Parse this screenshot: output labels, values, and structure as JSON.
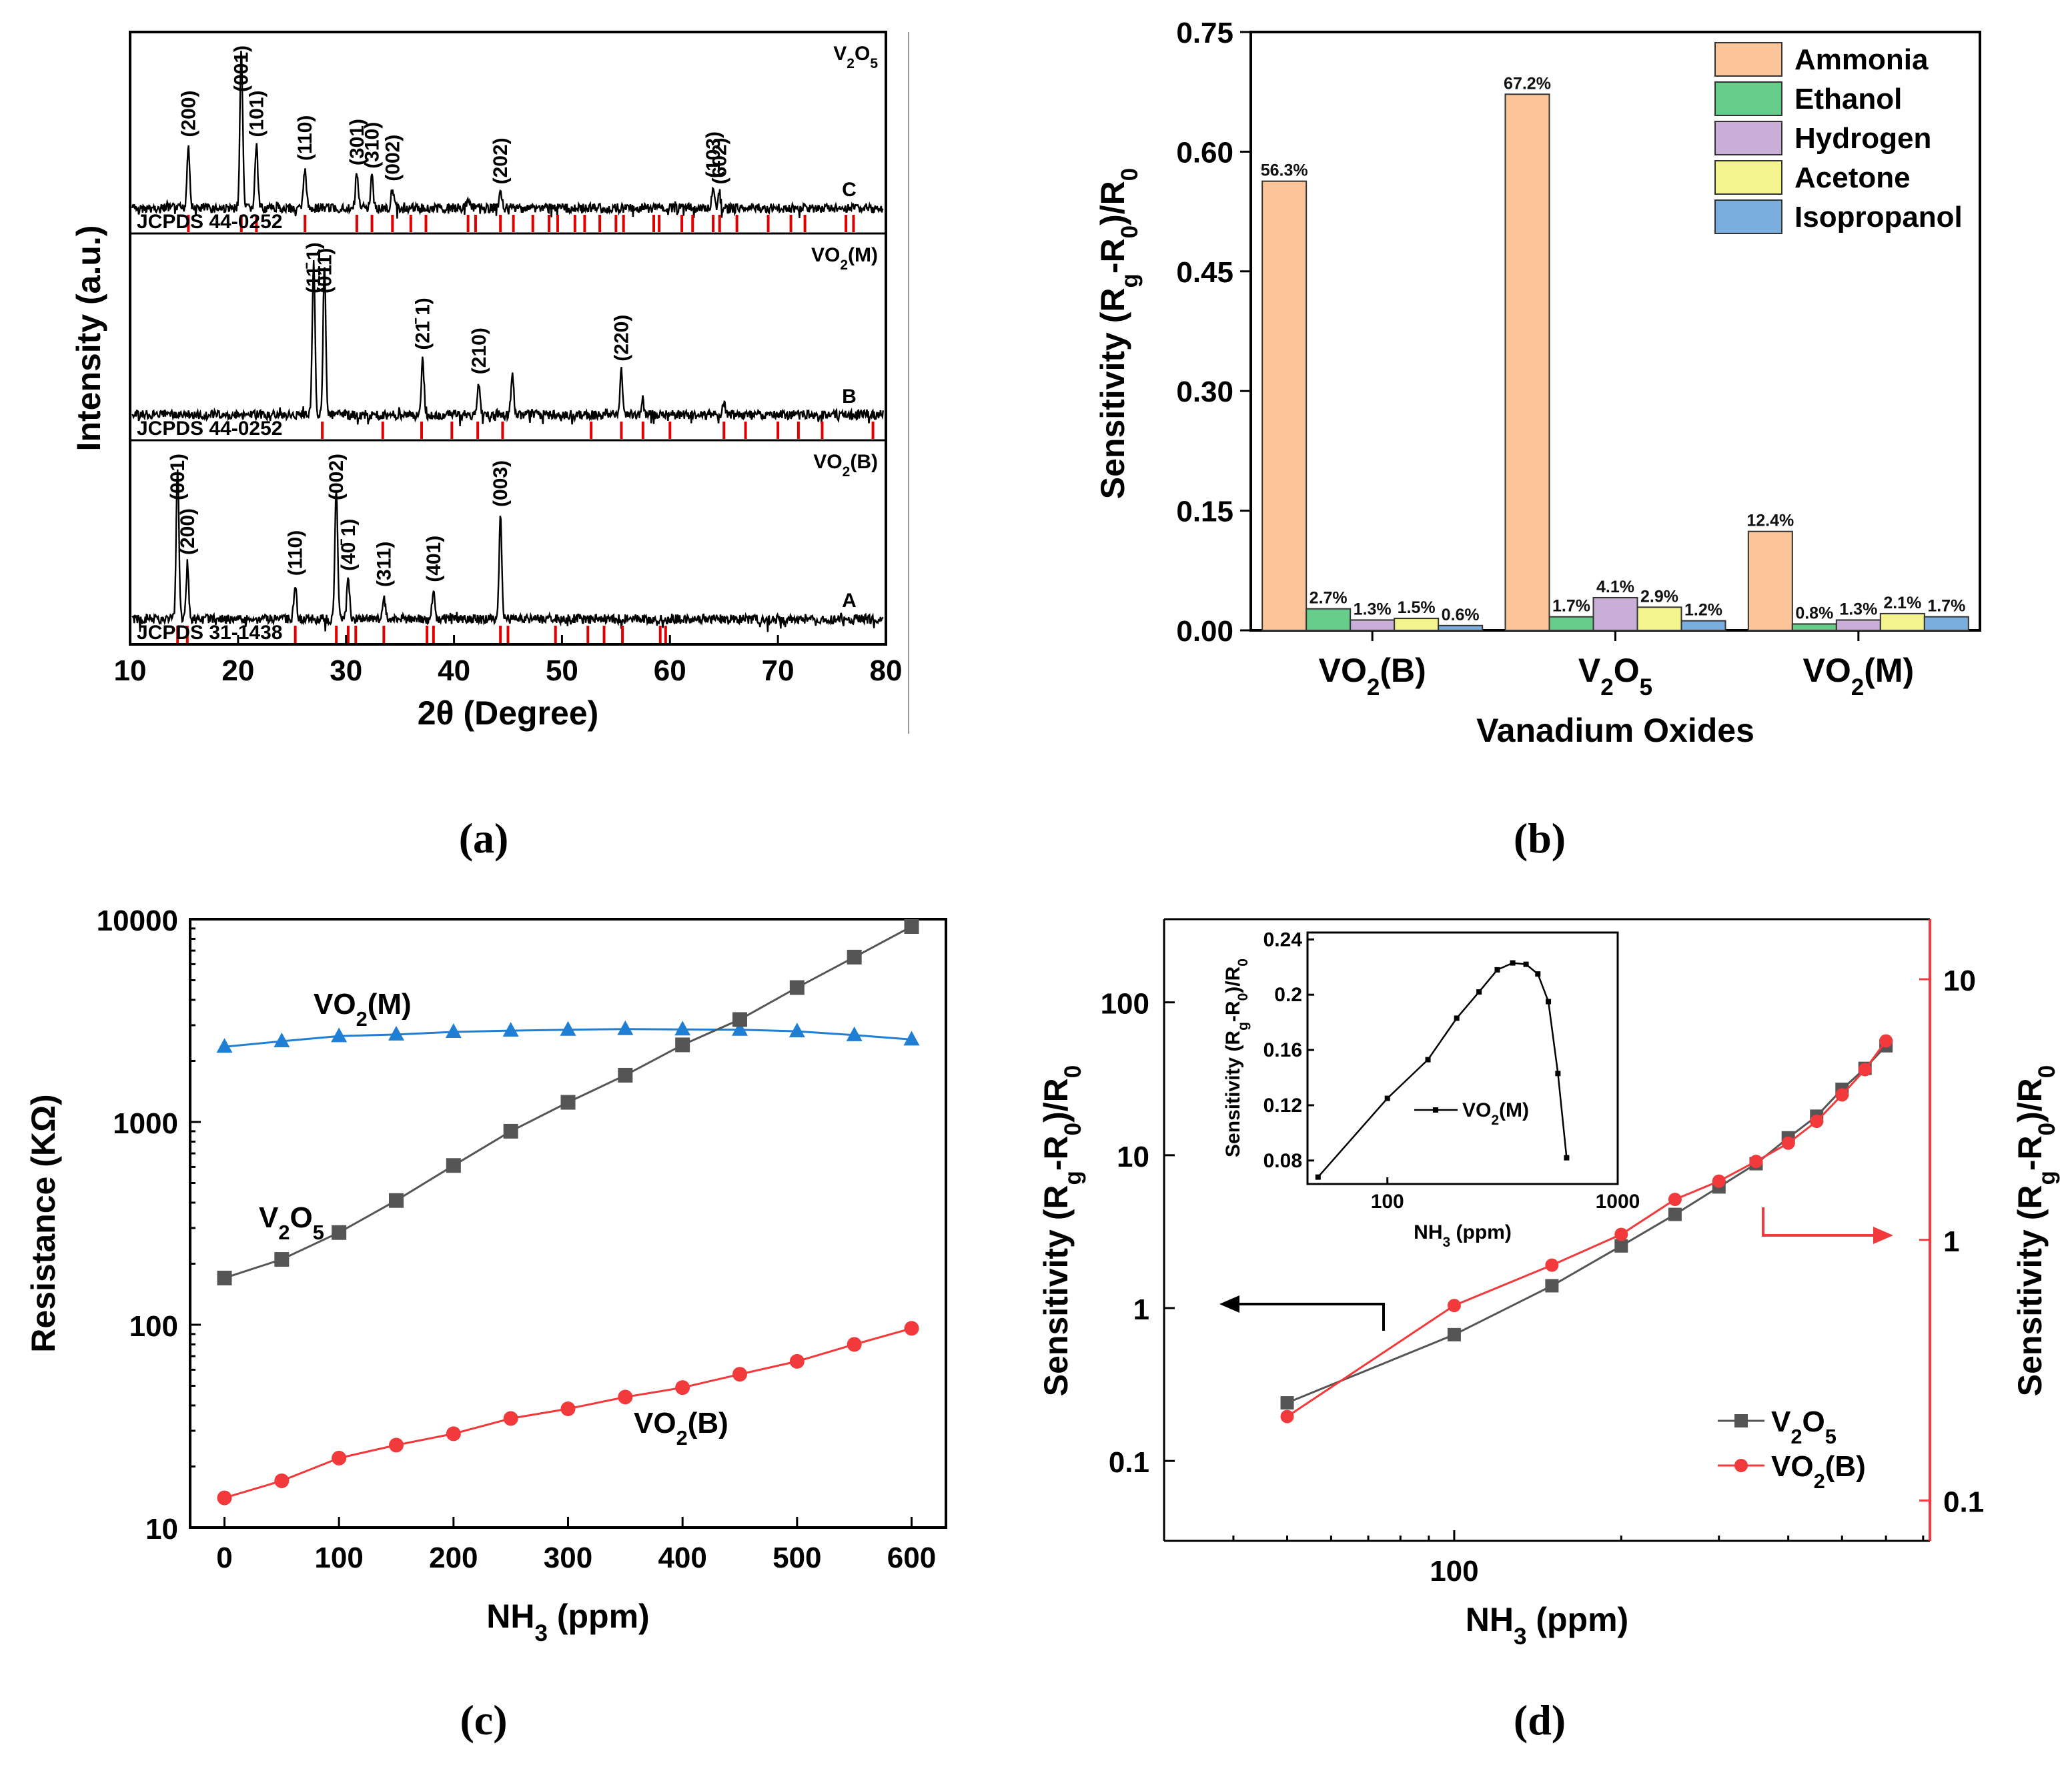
{
  "captions": [
    "(a)",
    "(b)",
    "(c)",
    "(d)"
  ],
  "chart_data": [
    {
      "id": "a",
      "type": "line",
      "xlabel": "2θ (Degree)",
      "ylabel": "Intensity (a.u.)",
      "xlim": [
        10,
        80
      ],
      "xticks": [
        10,
        20,
        30,
        40,
        50,
        60,
        70,
        80
      ],
      "panels": [
        {
          "phase": "V2O5",
          "phase_label": "V₂O₅",
          "curve_letter": "C",
          "reference": "JCPDS 44-0252",
          "peaks": [
            {
              "x": 15.4,
              "label": "(200)",
              "h": 0.4
            },
            {
              "x": 20.3,
              "label": "(001)",
              "h": 1.0
            },
            {
              "x": 21.7,
              "label": "(101)",
              "h": 0.4
            },
            {
              "x": 26.2,
              "label": "(110)",
              "h": 0.25
            },
            {
              "x": 31.0,
              "label": "(301)",
              "h": 0.22
            },
            {
              "x": 32.4,
              "label": "(310)",
              "h": 0.2
            },
            {
              "x": 34.3,
              "label": "(002)",
              "h": 0.12
            },
            {
              "x": 41.3,
              "label": "",
              "h": 0.07
            },
            {
              "x": 44.3,
              "label": "(202)",
              "h": 0.1
            },
            {
              "x": 64.0,
              "label": "(103)",
              "h": 0.14
            },
            {
              "x": 64.6,
              "label": "(602)",
              "h": 0.1
            }
          ],
          "ref_lines": [
            15.4,
            20.3,
            21.7,
            26.2,
            31.0,
            32.4,
            34.3,
            36.0,
            37.4,
            41.3,
            42.0,
            44.3,
            45.5,
            47.3,
            48.8,
            49.6,
            51.2,
            52.1,
            53.5,
            55.0,
            55.7,
            58.5,
            59.0,
            61.1,
            62.1,
            64.0,
            64.6,
            66.2,
            69.1,
            71.2,
            72.5,
            76.3,
            77.0
          ]
        },
        {
          "phase": "VO2(M)",
          "phase_label": "VO₂(M)",
          "curve_letter": "B",
          "reference": "JCPDS 44-0252",
          "peaks": [
            {
              "x": 27.0,
              "label": "(11̄ 1)",
              "h": 0.95
            },
            {
              "x": 28.0,
              "label": "(011)",
              "h": 0.9
            },
            {
              "x": 37.1,
              "label": "(21̄ 1)",
              "h": 0.35
            },
            {
              "x": 42.3,
              "label": "(210)",
              "h": 0.2
            },
            {
              "x": 45.4,
              "label": "",
              "h": 0.25
            },
            {
              "x": 55.5,
              "label": "(220)",
              "h": 0.28
            },
            {
              "x": 57.5,
              "label": "",
              "h": 0.1
            },
            {
              "x": 65.0,
              "label": "",
              "h": 0.08
            }
          ],
          "ref_lines": [
            27.8,
            33.4,
            37.0,
            39.8,
            42.2,
            44.5,
            52.7,
            55.5,
            57.5,
            60.0,
            65.0,
            67.0,
            70.0,
            71.9,
            74.1,
            78.8
          ]
        },
        {
          "phase": "VO2(B)",
          "phase_label": "VO₂(B)",
          "curve_letter": "A",
          "reference": "JCPDS 31-1438",
          "peaks": [
            {
              "x": 14.4,
              "label": "(001)",
              "h": 0.95
            },
            {
              "x": 15.3,
              "label": "(200)",
              "h": 0.35
            },
            {
              "x": 25.3,
              "label": "(110)",
              "h": 0.22
            },
            {
              "x": 29.1,
              "label": "(002)",
              "h": 0.82
            },
            {
              "x": 30.2,
              "label": "(40̄ 1)",
              "h": 0.25
            },
            {
              "x": 33.5,
              "label": "(311)",
              "h": 0.15
            },
            {
              "x": 38.1,
              "label": "(401)",
              "h": 0.18
            },
            {
              "x": 44.3,
              "label": "(003)",
              "h": 0.65
            }
          ],
          "ref_lines": [
            14.4,
            15.3,
            25.3,
            29.1,
            30.2,
            30.9,
            33.5,
            37.5,
            38.1,
            44.3,
            45.0,
            49.4,
            52.4,
            53.9,
            55.6,
            59.1,
            59.6
          ]
        }
      ]
    },
    {
      "id": "b",
      "type": "bar",
      "xlabel": "Vanadium Oxides",
      "ylabel": "Sensitivity (Rg-R0)/R0",
      "ylim": [
        0,
        0.75
      ],
      "yticks": [
        "0.00",
        "0.15",
        "0.30",
        "0.45",
        "0.60",
        "0.75"
      ],
      "categories": [
        "VO₂(B)",
        "V₂O₅",
        "VO₂(M)"
      ],
      "series": [
        {
          "name": "Ammonia",
          "color": "#fbc499",
          "values": [
            0.563,
            0.672,
            0.124
          ],
          "labels": [
            "56.3%",
            "67.2%",
            "12.4%"
          ]
        },
        {
          "name": "Ethanol",
          "color": "#66cc8a",
          "values": [
            0.027,
            0.017,
            0.008
          ],
          "labels": [
            "2.7%",
            "1.7%",
            "0.8%"
          ]
        },
        {
          "name": "Hydrogen",
          "color": "#c9aed8",
          "values": [
            0.013,
            0.041,
            0.013
          ],
          "labels": [
            "1.3%",
            "4.1%",
            "1.3%"
          ]
        },
        {
          "name": "Acetone",
          "color": "#f4f48e",
          "values": [
            0.015,
            0.029,
            0.021
          ],
          "labels": [
            "1.5%",
            "2.9%",
            "2.1%"
          ]
        },
        {
          "name": "Isopropanol",
          "color": "#7aaede",
          "values": [
            0.006,
            0.012,
            0.017
          ],
          "labels": [
            "0.6%",
            "1.2%",
            "1.7%"
          ]
        }
      ]
    },
    {
      "id": "c",
      "type": "line",
      "xlabel": "NH₃ (ppm)",
      "ylabel": "Resistance (KΩ)",
      "yscale": "log",
      "xlim": [
        -30,
        630
      ],
      "ylim": [
        10,
        10000
      ],
      "xticks": [
        0,
        100,
        200,
        300,
        400,
        500,
        600
      ],
      "yticks": [
        10,
        100,
        1000,
        10000
      ],
      "x": [
        0,
        50,
        100,
        150,
        200,
        250,
        300,
        350,
        400,
        450,
        500,
        550,
        600
      ],
      "series": [
        {
          "name": "VO₂(M)",
          "color": "#1f7fd4",
          "marker": "triangle",
          "values": [
            2350,
            2500,
            2650,
            2700,
            2780,
            2820,
            2850,
            2870,
            2860,
            2850,
            2800,
            2680,
            2550
          ]
        },
        {
          "name": "V₂O₅",
          "color": "#555555",
          "marker": "square",
          "values": [
            170,
            210,
            285,
            410,
            610,
            900,
            1250,
            1700,
            2400,
            3200,
            4600,
            6500,
            9200
          ]
        },
        {
          "name": "VO₂(B)",
          "color": "#f2393b",
          "marker": "circle",
          "values": [
            14,
            17,
            22,
            25.5,
            29,
            34.5,
            38.5,
            44,
            49,
            57,
            66,
            80,
            96
          ]
        }
      ],
      "annotations": [
        "VO₂(M)",
        "V₂O₅",
        "VO₂(B)"
      ]
    },
    {
      "id": "d",
      "type": "line",
      "xlabel": "NH₃ (ppm)",
      "ylabel_left": "Sensitivity (Rg-R0)/R0",
      "ylabel_right": "Sensitivity (Rg-R0)/R0",
      "xscale": "log",
      "xlim": [
        30,
        720
      ],
      "ylim_left": [
        0.03,
        350
      ],
      "ylim_right": [
        0.07,
        17
      ],
      "xticks": [
        100
      ],
      "yticks_left": [
        "0.1",
        "1",
        "10",
        "100"
      ],
      "yticks_right": [
        "0.1",
        "1",
        "10"
      ],
      "x": [
        50,
        100,
        150,
        200,
        250,
        300,
        350,
        400,
        450,
        500,
        550,
        600
      ],
      "series": [
        {
          "name": "V₂O₅",
          "axis": "left",
          "color": "#555555",
          "marker": "square",
          "values": [
            0.24,
            0.67,
            1.4,
            2.55,
            4.1,
            6.2,
            8.8,
            13,
            18,
            27,
            37,
            52
          ]
        },
        {
          "name": "VO₂(B)",
          "axis": "right",
          "color": "#f2393b",
          "marker": "circle",
          "values": [
            0.21,
            0.56,
            0.8,
            1.05,
            1.43,
            1.68,
            2.0,
            2.35,
            2.85,
            3.6,
            4.5,
            5.8
          ]
        }
      ],
      "inset": {
        "xlabel": "NH₃ (ppm)",
        "ylabel": "Sensitivity (Rg-R0)/R0",
        "xscale": "log",
        "xlim": [
          45,
          1000
        ],
        "ylim": [
          0.063,
          0.245
        ],
        "xticks": [
          100,
          1000
        ],
        "yticks": [
          "0.08",
          "0.12",
          "0.16",
          "0.2",
          "0.24"
        ],
        "series": [
          {
            "name": "VO₂(M)",
            "x": [
              50,
              100,
              150,
              200,
              250,
              300,
              350,
              400,
              450,
              500,
              550,
              600
            ],
            "values": [
              0.068,
              0.125,
              0.153,
              0.183,
              0.202,
              0.218,
              0.223,
              0.222,
              0.215,
              0.195,
              0.143,
              0.082
            ]
          }
        ]
      }
    }
  ]
}
